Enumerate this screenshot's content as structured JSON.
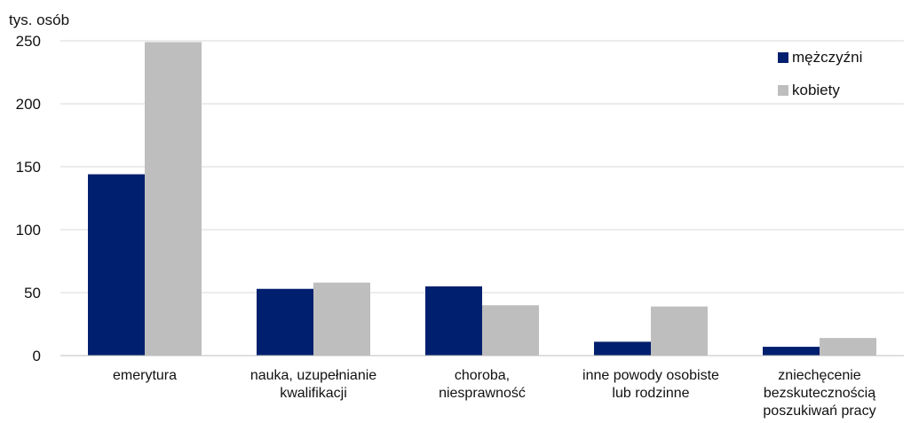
{
  "chart_data": {
    "type": "bar",
    "ylabel": "tys. osób",
    "ylim": [
      0,
      250
    ],
    "yticks": [
      0,
      50,
      100,
      150,
      200,
      250
    ],
    "grid": true,
    "legend_position": "top-right",
    "categories": [
      [
        "emerytura"
      ],
      [
        "nauka, uzupełnianie",
        "kwalifikacji"
      ],
      [
        "choroba,",
        "niesprawność"
      ],
      [
        "inne powody osobiste",
        "lub rodzinne"
      ],
      [
        "zniechęcenie",
        "bezskutecznością",
        "poszukiwań pracy"
      ]
    ],
    "series": [
      {
        "name": "mężczyźni",
        "color": "#001F6E",
        "values": [
          144,
          53,
          55,
          11,
          7
        ]
      },
      {
        "name": "kobiety",
        "color": "#BEBEBE",
        "values": [
          249,
          58,
          40,
          39,
          14
        ]
      }
    ]
  }
}
